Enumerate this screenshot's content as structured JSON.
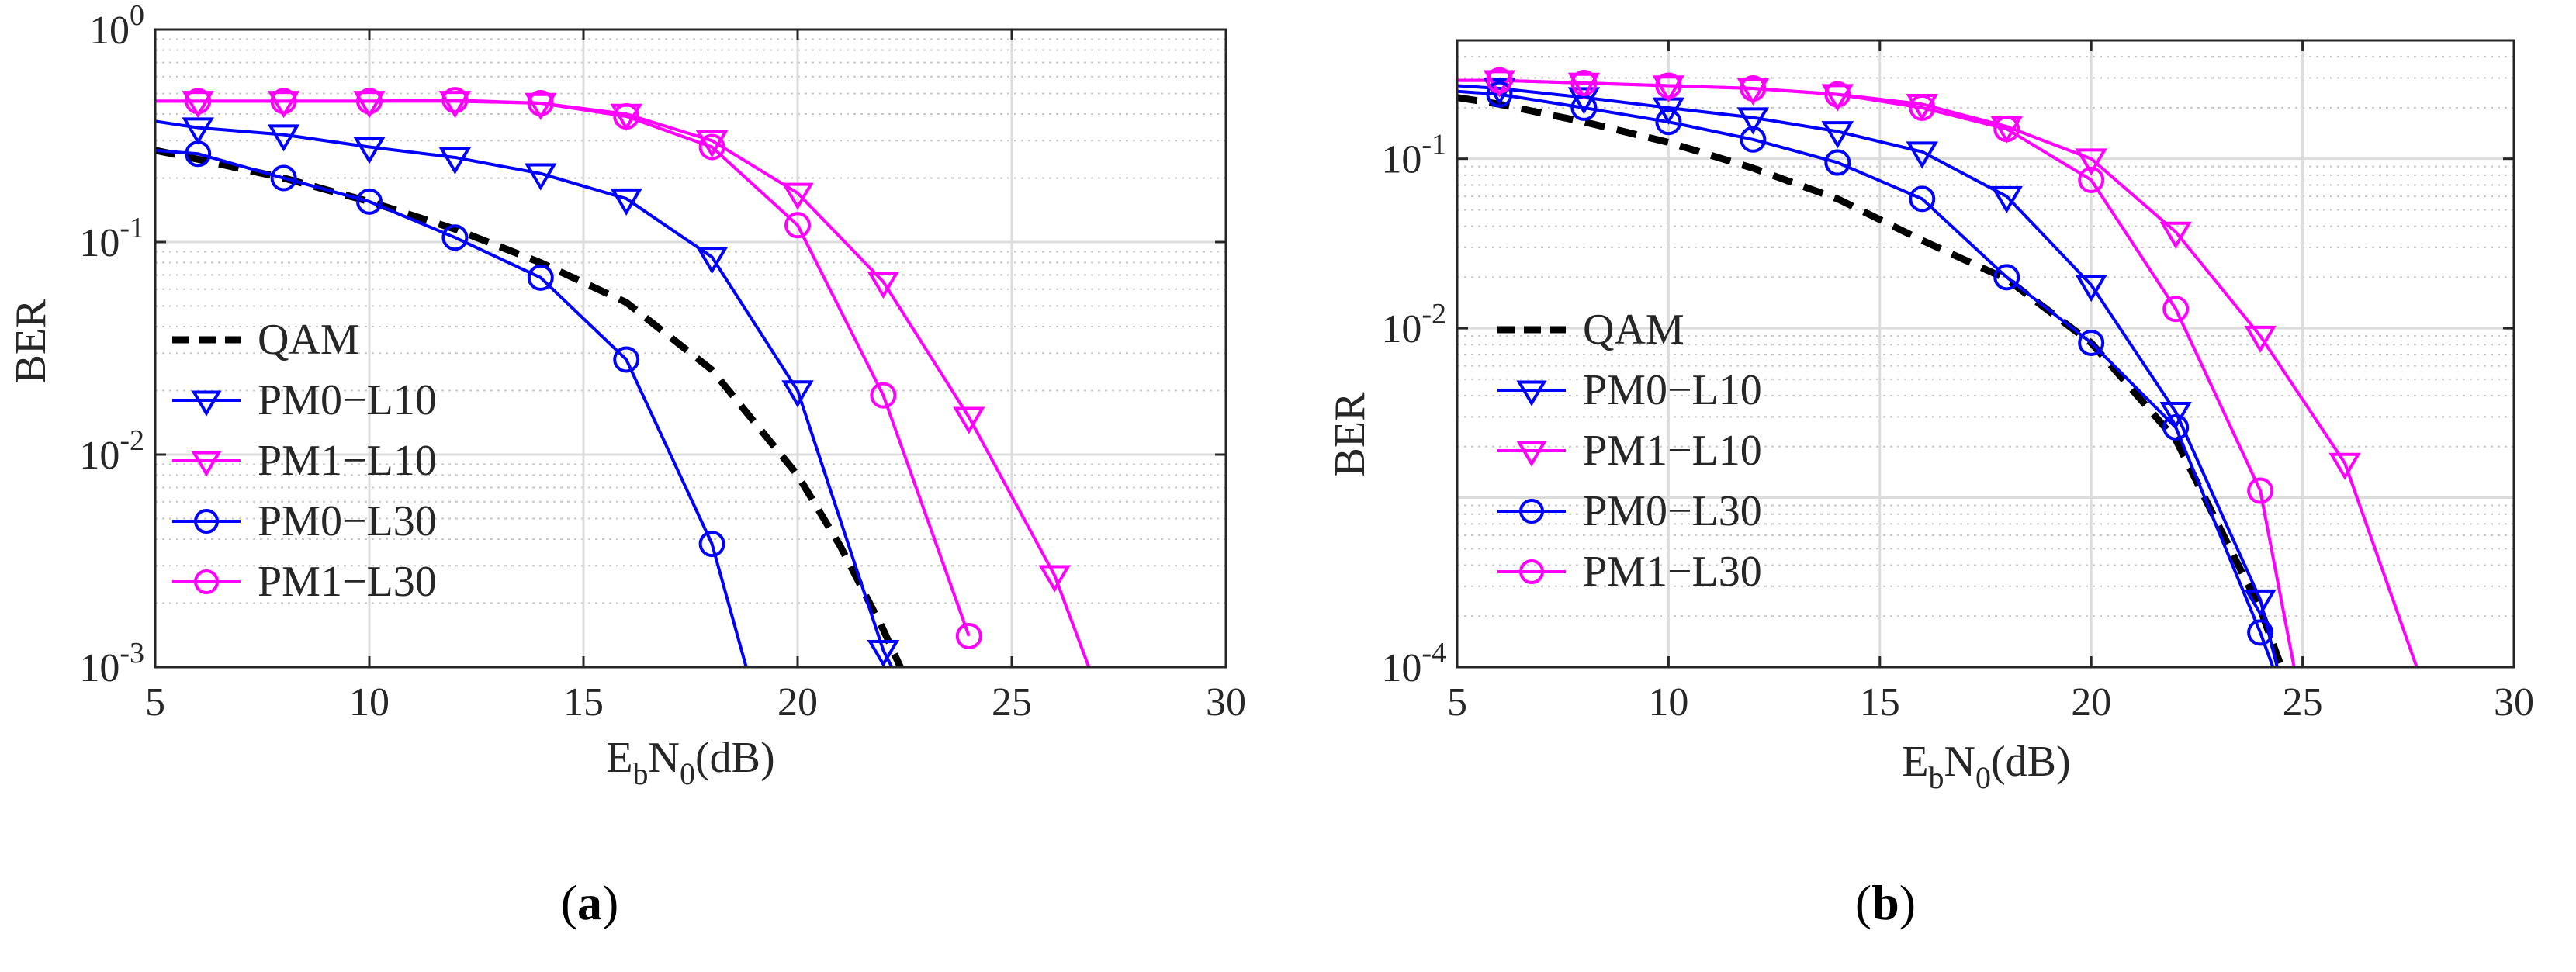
{
  "chart_data": [
    {
      "type": "line",
      "caption": "(a)",
      "ylabel": "BER",
      "xlabel": {
        "main": "E",
        "sub1": "b",
        "mid": "N",
        "sub2": "0",
        "unit": "(dB)"
      },
      "yscale": "log",
      "xlim": [
        5,
        30
      ],
      "ylim": [
        0.001,
        1
      ],
      "xticks": [
        "5",
        "10",
        "15",
        "20",
        "25",
        "30"
      ],
      "yticks": [
        {
          "base": "10",
          "exp": "0"
        },
        {
          "base": "10",
          "exp": "-1"
        },
        {
          "base": "10",
          "exp": "-2"
        },
        {
          "base": "10",
          "exp": "-3"
        }
      ],
      "grid": true,
      "legend_position": "left-center",
      "series": [
        {
          "name": "QAM",
          "color": "#000000",
          "style": "dashed",
          "marker": "none",
          "x": [
            5,
            6,
            8,
            10,
            12,
            14,
            16,
            18,
            20,
            21,
            22,
            22.4
          ],
          "y": [
            0.27,
            0.245,
            0.2,
            0.155,
            0.115,
            0.08,
            0.052,
            0.025,
            0.008,
            0.0037,
            0.0015,
            0.001
          ]
        },
        {
          "name": "PM0−L10",
          "color": "#0000ff",
          "style": "solid",
          "marker": "triangle-down",
          "x": [
            5,
            6,
            8,
            10,
            12,
            14,
            16,
            18,
            20,
            22,
            22.2
          ],
          "y": [
            0.37,
            0.345,
            0.32,
            0.28,
            0.25,
            0.21,
            0.16,
            0.085,
            0.02,
            0.0012,
            0.001
          ]
        },
        {
          "name": "PM1−L10",
          "color": "#ff00ff",
          "style": "solid",
          "marker": "triangle-down",
          "x": [
            5,
            6,
            8,
            10,
            12,
            14,
            16,
            18,
            20,
            22,
            24,
            26,
            26.8
          ],
          "y": [
            0.46,
            0.46,
            0.46,
            0.46,
            0.46,
            0.45,
            0.4,
            0.3,
            0.17,
            0.065,
            0.015,
            0.0027,
            0.001
          ]
        },
        {
          "name": "PM0−L30",
          "color": "#0000ff",
          "style": "solid",
          "marker": "circle",
          "x": [
            5,
            6,
            8,
            10,
            12,
            14,
            16,
            18,
            18.8
          ],
          "y": [
            0.27,
            0.26,
            0.2,
            0.155,
            0.105,
            0.068,
            0.028,
            0.0038,
            0.001
          ]
        },
        {
          "name": "PM1−L30",
          "color": "#ff00ff",
          "style": "solid",
          "marker": "circle",
          "x": [
            5,
            6,
            8,
            10,
            12,
            14,
            16,
            18,
            20,
            22,
            24
          ],
          "y": [
            0.46,
            0.46,
            0.46,
            0.46,
            0.465,
            0.45,
            0.39,
            0.28,
            0.12,
            0.019,
            0.0014
          ]
        }
      ]
    },
    {
      "type": "line",
      "caption": "(b)",
      "ylabel": "BER",
      "xlabel": {
        "main": "E",
        "sub1": "b",
        "mid": "N",
        "sub2": "0",
        "unit": "(dB)"
      },
      "yscale": "log",
      "xlim": [
        5,
        30
      ],
      "ylim": [
        0.0001,
        0.5
      ],
      "xticks": [
        "5",
        "10",
        "15",
        "20",
        "25",
        "30"
      ],
      "yticks": [
        {
          "base": "10",
          "exp": "-1"
        },
        {
          "base": "10",
          "exp": "-2"
        },
        {
          "base": "10",
          "exp": "-4"
        }
      ],
      "grid": true,
      "legend_position": "left-center",
      "series": [
        {
          "name": "QAM",
          "color": "#000000",
          "style": "dashed",
          "marker": "none",
          "x": [
            5,
            6,
            8,
            10,
            12,
            14,
            16,
            18,
            20,
            22,
            24,
            24.5
          ],
          "y": [
            0.23,
            0.21,
            0.165,
            0.125,
            0.088,
            0.058,
            0.033,
            0.0195,
            0.0082,
            0.0022,
            0.00022,
            0.0001
          ]
        },
        {
          "name": "PM0−L10",
          "color": "#0000ff",
          "style": "solid",
          "marker": "triangle-down",
          "x": [
            5,
            6,
            8,
            10,
            12,
            14,
            16,
            18,
            20,
            22,
            24,
            24.4
          ],
          "y": [
            0.27,
            0.26,
            0.23,
            0.2,
            0.175,
            0.145,
            0.11,
            0.06,
            0.018,
            0.0032,
            0.00025,
            0.0001
          ]
        },
        {
          "name": "PM1−L10",
          "color": "#ff00ff",
          "style": "solid",
          "marker": "triangle-down",
          "x": [
            5,
            6,
            8,
            10,
            12,
            14,
            16,
            18,
            20,
            22,
            24,
            26,
            27.7
          ],
          "y": [
            0.29,
            0.29,
            0.28,
            0.27,
            0.26,
            0.24,
            0.21,
            0.155,
            0.1,
            0.037,
            0.009,
            0.0016,
            0.0001
          ]
        },
        {
          "name": "PM0−L30",
          "color": "#0000ff",
          "style": "solid",
          "marker": "circle",
          "x": [
            5,
            6,
            8,
            10,
            12,
            14,
            16,
            18,
            20,
            22,
            24,
            24.3
          ],
          "y": [
            0.25,
            0.24,
            0.2,
            0.165,
            0.13,
            0.095,
            0.058,
            0.02,
            0.0082,
            0.0026,
            0.00016,
            0.0001
          ]
        },
        {
          "name": "PM1−L30",
          "color": "#ff00ff",
          "style": "solid",
          "marker": "circle",
          "x": [
            5,
            6,
            8,
            10,
            12,
            14,
            16,
            18,
            20,
            22,
            24,
            24.8
          ],
          "y": [
            0.29,
            0.29,
            0.28,
            0.27,
            0.26,
            0.24,
            0.2,
            0.15,
            0.075,
            0.013,
            0.0011,
            0.0001
          ]
        }
      ]
    }
  ]
}
